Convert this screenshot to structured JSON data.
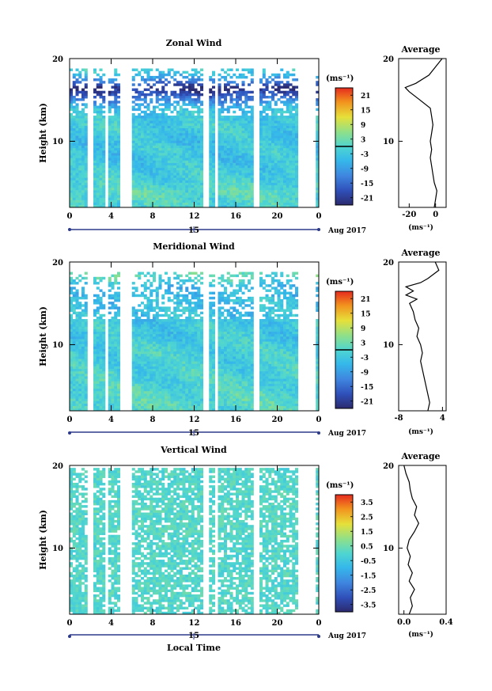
{
  "chart_data": [
    {
      "type": "heatmap",
      "title": "Zonal Wind",
      "ylabel": "Height (km)",
      "ylim": [
        2,
        20
      ],
      "yticks": [
        "20",
        "10"
      ],
      "xlim": [
        0,
        24
      ],
      "xticks": [
        "0",
        "4",
        "8",
        "12",
        "16",
        "20",
        "0"
      ],
      "date_label": "15",
      "date_suffix": "Aug 2017",
      "colorbar": {
        "unit": "(ms⁻¹)",
        "ticks": [
          "21",
          "15",
          "9",
          "3",
          "-3",
          "-9",
          "-15",
          "-21"
        ],
        "vmin": -24,
        "vmax": 24
      },
      "data_gaps_hours": [
        [
          1.8,
          2.2
        ],
        [
          3.3,
          3.8
        ],
        [
          4.9,
          6.0
        ],
        [
          13.0,
          13.3
        ],
        [
          13.9,
          14.3
        ],
        [
          17.8,
          18.2
        ],
        [
          22.1,
          23.8
        ]
      ],
      "average": {
        "title": "Average",
        "xlabel": "(ms⁻¹)",
        "xlim": [
          -28,
          8
        ],
        "xticks": [
          "-20",
          "0"
        ],
        "yticks": [
          "20",
          "10"
        ],
        "profile": [
          [
            2.0,
            -1
          ],
          [
            3.0,
            0
          ],
          [
            4.0,
            1
          ],
          [
            5.0,
            -1
          ],
          [
            6.0,
            -2
          ],
          [
            7.0,
            -3
          ],
          [
            8.0,
            -4
          ],
          [
            9.0,
            -3
          ],
          [
            10.0,
            -4
          ],
          [
            11.0,
            -3
          ],
          [
            12.0,
            -2
          ],
          [
            13.0,
            -3
          ],
          [
            14.0,
            -4
          ],
          [
            15.0,
            -12
          ],
          [
            16.0,
            -20
          ],
          [
            16.5,
            -23
          ],
          [
            17.0,
            -15
          ],
          [
            18.0,
            -5
          ],
          [
            19.0,
            0
          ],
          [
            20.0,
            5
          ]
        ]
      }
    },
    {
      "type": "heatmap",
      "title": "Meridional Wind",
      "ylabel": "Height (km)",
      "ylim": [
        2,
        20
      ],
      "yticks": [
        "20",
        "10"
      ],
      "xlim": [
        0,
        24
      ],
      "xticks": [
        "0",
        "4",
        "8",
        "12",
        "16",
        "20",
        "0"
      ],
      "date_label": "15",
      "date_suffix": "Aug 2017",
      "colorbar": {
        "unit": "(ms⁻¹)",
        "ticks": [
          "21",
          "15",
          "9",
          "3",
          "-3",
          "-9",
          "-15",
          "-21"
        ],
        "vmin": -24,
        "vmax": 24
      },
      "data_gaps_hours": [
        [
          1.8,
          2.2
        ],
        [
          3.3,
          3.8
        ],
        [
          4.9,
          6.0
        ],
        [
          13.0,
          13.3
        ],
        [
          13.9,
          14.3
        ],
        [
          17.8,
          18.2
        ],
        [
          22.1,
          23.8
        ]
      ],
      "average": {
        "title": "Average",
        "xlabel": "(ms⁻¹)",
        "xlim": [
          -8,
          5
        ],
        "xticks": [
          "-8",
          "4"
        ],
        "yticks": [
          "20",
          "10"
        ],
        "profile": [
          [
            2.0,
            0
          ],
          [
            3.0,
            0.5
          ],
          [
            4.0,
            0
          ],
          [
            5.0,
            -0.5
          ],
          [
            6.0,
            -1
          ],
          [
            7.0,
            -1.5
          ],
          [
            8.0,
            -2
          ],
          [
            9.0,
            -1.5
          ],
          [
            10.0,
            -2
          ],
          [
            11.0,
            -3
          ],
          [
            12.0,
            -2.5
          ],
          [
            13.0,
            -3.5
          ],
          [
            14.0,
            -4
          ],
          [
            15.0,
            -5
          ],
          [
            15.5,
            -3
          ],
          [
            16.0,
            -6
          ],
          [
            16.5,
            -4
          ],
          [
            17.0,
            -6
          ],
          [
            17.5,
            -2
          ],
          [
            18.0,
            0
          ],
          [
            19.0,
            3
          ],
          [
            20.0,
            2
          ]
        ]
      }
    },
    {
      "type": "heatmap",
      "title": "Vertical Wind",
      "ylabel": "Height (km)",
      "xlabel": "Local Time",
      "ylim": [
        2,
        20
      ],
      "yticks": [
        "20",
        "10"
      ],
      "xlim": [
        0,
        24
      ],
      "xticks": [
        "0",
        "4",
        "8",
        "12",
        "16",
        "20",
        "0"
      ],
      "date_label": "15",
      "date_suffix": "Aug 2017",
      "colorbar": {
        "unit": "(ms⁻¹)",
        "ticks": [
          "3.5",
          "2.5",
          "1.5",
          "0.5",
          "-0.5",
          "-1.5",
          "-2.5",
          "-3.5"
        ],
        "vmin": -4,
        "vmax": 4
      },
      "data_gaps_hours": [
        [
          1.8,
          2.2
        ],
        [
          3.3,
          3.8
        ],
        [
          4.9,
          6.0
        ],
        [
          13.0,
          13.3
        ],
        [
          13.9,
          14.3
        ],
        [
          17.8,
          18.2
        ],
        [
          22.1,
          23.8
        ]
      ],
      "average": {
        "title": "Average",
        "xlabel": "(ms⁻¹)",
        "xlim": [
          -0.05,
          0.4
        ],
        "xticks": [
          "0.0",
          "0.4"
        ],
        "yticks": [
          "20",
          "10"
        ],
        "profile": [
          [
            2.0,
            0.05
          ],
          [
            3.0,
            0.08
          ],
          [
            4.0,
            0.06
          ],
          [
            5.0,
            0.1
          ],
          [
            6.0,
            0.05
          ],
          [
            7.0,
            0.08
          ],
          [
            8.0,
            0.04
          ],
          [
            9.0,
            0.06
          ],
          [
            10.0,
            0.03
          ],
          [
            11.0,
            0.05
          ],
          [
            12.0,
            0.1
          ],
          [
            13.0,
            0.14
          ],
          [
            14.0,
            0.1
          ],
          [
            15.0,
            0.12
          ],
          [
            16.0,
            0.08
          ],
          [
            17.0,
            0.06
          ],
          [
            18.0,
            0.05
          ],
          [
            19.0,
            0.02
          ],
          [
            20.0,
            0.0
          ]
        ]
      }
    }
  ]
}
